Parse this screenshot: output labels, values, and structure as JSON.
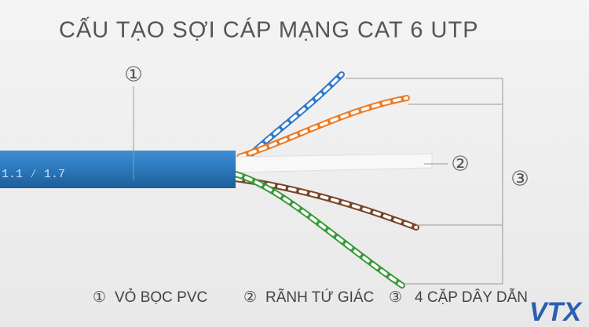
{
  "title": "CẤU TẠO SỢI CÁP MẠNG CAT 6 UTP",
  "callouts": [
    {
      "label": "①"
    },
    {
      "label": "②"
    },
    {
      "label": "③"
    }
  ],
  "legend": [
    {
      "marker": "①",
      "text": "VỎ BỌC PVC"
    },
    {
      "marker": "②",
      "text": "RÃNH TỨ GIÁC"
    },
    {
      "marker": "③",
      "text": "4 CẶP DÂY DẪN"
    }
  ],
  "cable_print": "1.1 ⁄ 1.7",
  "logo": "VTX"
}
